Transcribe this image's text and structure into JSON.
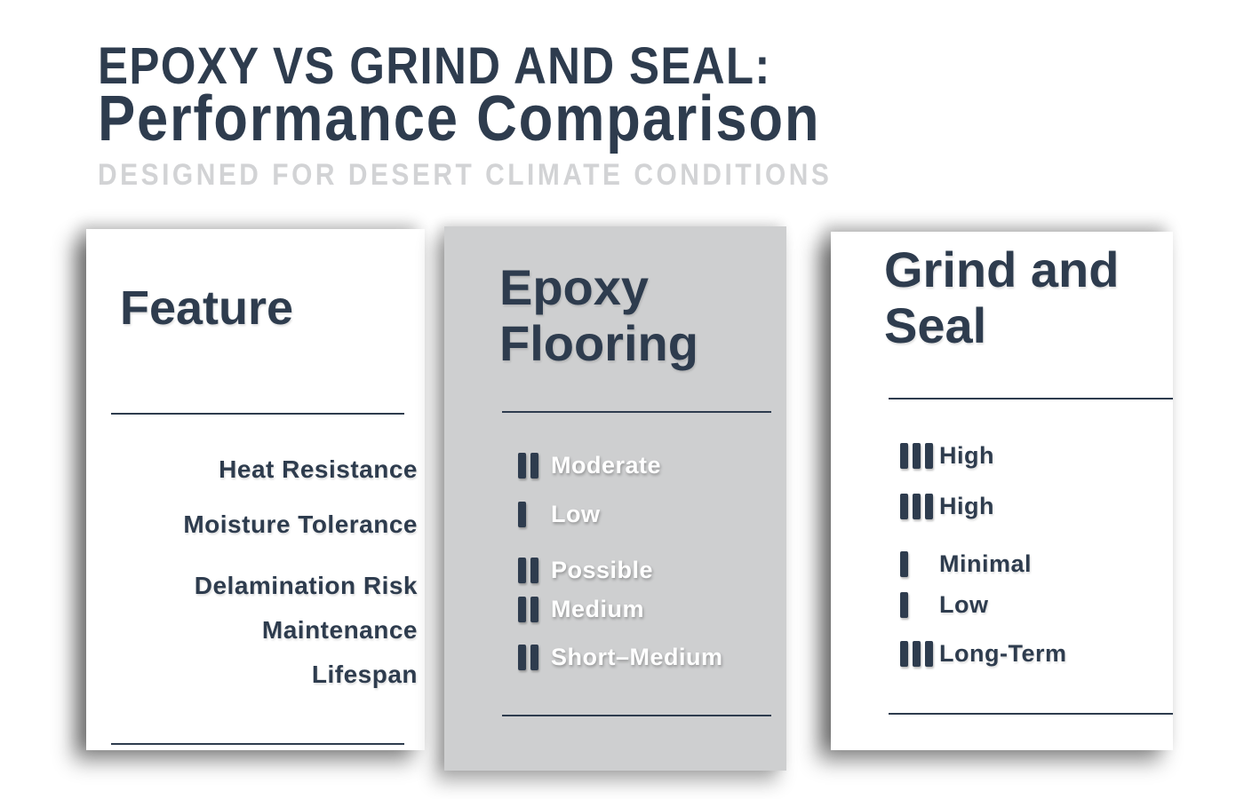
{
  "colors": {
    "navy": "#2e3c4e",
    "card_gray": "#cecfd0",
    "tagline_gray": "#d2d3d5",
    "card_white": "#ffffff"
  },
  "header": {
    "title_line1": "EPOXY VS GRIND AND SEAL:",
    "title_line2": "Performance Comparison",
    "tagline": "DESIGNED FOR DESERT CLIMATE CONDITIONS"
  },
  "columns": {
    "feature": {
      "title": "Feature",
      "rows": [
        "Heat Resistance",
        "Moisture Tolerance",
        "Delamination Risk",
        "Maintenance",
        "Lifespan"
      ]
    },
    "epoxy": {
      "title": "Epoxy Flooring",
      "rows": [
        {
          "rating": 2,
          "label": "Moderate"
        },
        {
          "rating": 1,
          "label": "Low"
        },
        {
          "rating": 2,
          "label": "Possible"
        },
        {
          "rating": 2,
          "label": "Medium"
        },
        {
          "rating": 2,
          "label": "Short–Medium"
        }
      ]
    },
    "grind": {
      "title": "Grind and Seal",
      "rows": [
        {
          "rating": 3,
          "label": "High"
        },
        {
          "rating": 3,
          "label": "High"
        },
        {
          "rating": 1,
          "label": "Minimal"
        },
        {
          "rating": 1,
          "label": "Low"
        },
        {
          "rating": 3,
          "label": "Long-Term"
        }
      ]
    }
  },
  "chart_data": {
    "type": "table",
    "title": "EPOXY VS GRIND AND SEAL: Performance Comparison",
    "subtitle": "DESIGNED FOR DESERT CLIMATE CONDITIONS",
    "categories": [
      "Heat Resistance",
      "Moisture Tolerance",
      "Delamination Risk",
      "Maintenance",
      "Lifespan"
    ],
    "series": [
      {
        "name": "Epoxy Flooring",
        "values": [
          "Moderate",
          "Low",
          "Possible",
          "Medium",
          "Short–Medium"
        ],
        "ratings": [
          2,
          1,
          2,
          2,
          2
        ]
      },
      {
        "name": "Grind and Seal",
        "values": [
          "High",
          "High",
          "Minimal",
          "Low",
          "Long-Term"
        ],
        "ratings": [
          3,
          3,
          1,
          1,
          3
        ]
      }
    ],
    "rating_scale": {
      "min": 1,
      "max": 3,
      "glyph": "tally-bars"
    },
    "legend_position": "none",
    "grid": false
  }
}
